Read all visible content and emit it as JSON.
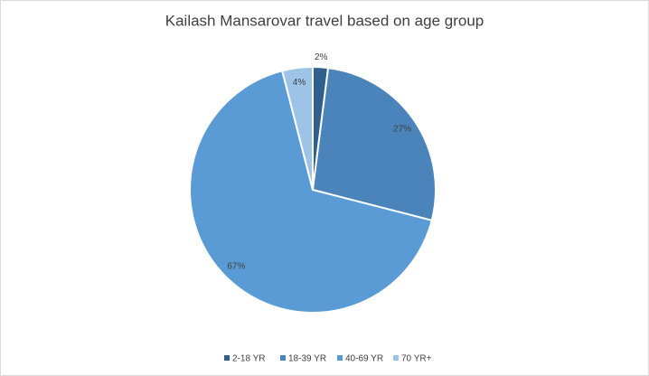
{
  "chart_data": {
    "type": "pie",
    "title": "Kailash Mansarovar travel based on age group",
    "categories": [
      "2-18 YR",
      "18-39 YR",
      "40-69 YR",
      "70 YR+"
    ],
    "values": [
      2,
      27,
      67,
      4
    ],
    "value_labels": [
      "2%",
      "27%",
      "67%",
      "4%"
    ],
    "colors": [
      "#2e5f8f",
      "#4a84bb",
      "#5b9bd5",
      "#9dc3e6"
    ],
    "legend": "bottom"
  }
}
